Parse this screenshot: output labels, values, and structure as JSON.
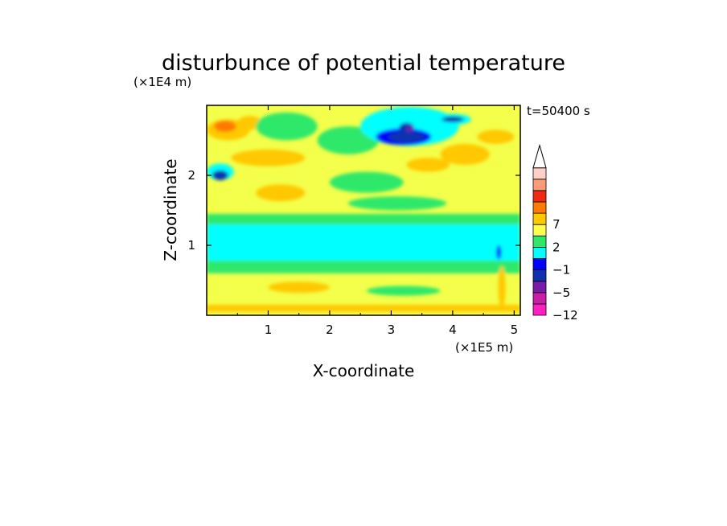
{
  "chart_data": {
    "type": "heatmap",
    "title": "disturbunce of potential temperature",
    "xlabel": "X-coordinate",
    "ylabel": "Z-coordinate",
    "x_unit_label": "(×1E5 m)",
    "y_unit_label": "(×1E4 m)",
    "time_label": "t=50400 s",
    "x_range": [
      0,
      5.1
    ],
    "y_range": [
      0,
      3.0
    ],
    "x_ticks": [
      1,
      2,
      3,
      4,
      5
    ],
    "x_tick_labels": [
      "1",
      "2",
      "3",
      "4",
      "5"
    ],
    "y_ticks": [
      1,
      2
    ],
    "y_tick_labels": [
      "1",
      "2"
    ],
    "colorbar_ticks": [
      {
        "level_index": 8,
        "label": "7"
      },
      {
        "level_index": 6,
        "label": "2"
      },
      {
        "level_index": 4,
        "label": "−1"
      },
      {
        "level_index": 2,
        "label": "−5"
      },
      {
        "level_index": 0,
        "label": "−12"
      }
    ],
    "colorbar_colors": [
      "#ff20c0",
      "#c81ea8",
      "#7a1aa8",
      "#1030b0",
      "#0000ff",
      "#00ffff",
      "#2ee86a",
      "#ffff50",
      "#ffc800",
      "#ff7a00",
      "#ee2a12",
      "#ff9a7a",
      "#ffd0c8"
    ],
    "background_color": "#f3ff4a",
    "features": [
      {
        "kind": "band",
        "x0": 0,
        "x1": 5.1,
        "z0": 0.75,
        "z1": 1.3,
        "color": "#00ffff"
      },
      {
        "kind": "band",
        "x0": 0,
        "x1": 5.1,
        "z0": 1.3,
        "z1": 1.45,
        "color": "#2ee86a"
      },
      {
        "kind": "band",
        "x0": 0,
        "x1": 5.1,
        "z0": 0.6,
        "z1": 0.78,
        "color": "#2ee86a"
      },
      {
        "kind": "band",
        "x0": 0,
        "x1": 5.1,
        "z0": 0.05,
        "z1": 0.15,
        "color": "#ffc800"
      },
      {
        "kind": "blob",
        "x": 0.35,
        "z": 2.65,
        "rx": 0.35,
        "rz": 0.15,
        "color": "#ffc800"
      },
      {
        "kind": "blob",
        "x": 0.3,
        "z": 2.7,
        "rx": 0.18,
        "rz": 0.08,
        "color": "#ff7a00"
      },
      {
        "kind": "blob",
        "x": 0.7,
        "z": 2.75,
        "rx": 0.2,
        "rz": 0.1,
        "color": "#ffc800"
      },
      {
        "kind": "blob",
        "x": 0.22,
        "z": 2.05,
        "rx": 0.22,
        "rz": 0.12,
        "color": "#00ffff"
      },
      {
        "kind": "blob",
        "x": 0.22,
        "z": 2.0,
        "rx": 0.13,
        "rz": 0.07,
        "color": "#1030b0"
      },
      {
        "kind": "blob",
        "x": 1.3,
        "z": 2.7,
        "rx": 0.5,
        "rz": 0.2,
        "color": "#2ee86a"
      },
      {
        "kind": "blob",
        "x": 2.3,
        "z": 2.5,
        "rx": 0.5,
        "rz": 0.2,
        "color": "#2ee86a"
      },
      {
        "kind": "blob",
        "x": 3.3,
        "z": 2.7,
        "rx": 0.8,
        "rz": 0.28,
        "color": "#00ffff"
      },
      {
        "kind": "blob",
        "x": 3.2,
        "z": 2.55,
        "rx": 0.45,
        "rz": 0.12,
        "color": "#0000ff"
      },
      {
        "kind": "blob",
        "x": 3.25,
        "z": 2.55,
        "rx": 0.3,
        "rz": 0.08,
        "color": "#1030b0"
      },
      {
        "kind": "blob",
        "x": 3.25,
        "z": 2.68,
        "rx": 0.12,
        "rz": 0.07,
        "color": "#1030b0"
      },
      {
        "kind": "blob",
        "x": 3.3,
        "z": 2.66,
        "rx": 0.05,
        "rz": 0.035,
        "color": "#7a1aa8"
      },
      {
        "kind": "blob",
        "x": 4.0,
        "z": 2.8,
        "rx": 0.3,
        "rz": 0.08,
        "color": "#00ffff"
      },
      {
        "kind": "blob",
        "x": 4.0,
        "z": 2.8,
        "rx": 0.18,
        "rz": 0.04,
        "color": "#1030b0"
      },
      {
        "kind": "blob",
        "x": 4.2,
        "z": 2.3,
        "rx": 0.4,
        "rz": 0.15,
        "color": "#ffc800"
      },
      {
        "kind": "blob",
        "x": 4.7,
        "z": 2.55,
        "rx": 0.3,
        "rz": 0.1,
        "color": "#ffc800"
      },
      {
        "kind": "blob",
        "x": 3.6,
        "z": 2.15,
        "rx": 0.35,
        "rz": 0.1,
        "color": "#ffc800"
      },
      {
        "kind": "blob",
        "x": 2.6,
        "z": 1.9,
        "rx": 0.6,
        "rz": 0.15,
        "color": "#2ee86a"
      },
      {
        "kind": "blob",
        "x": 1.2,
        "z": 1.75,
        "rx": 0.4,
        "rz": 0.12,
        "color": "#ffc800"
      },
      {
        "kind": "blob",
        "x": 3.1,
        "z": 1.6,
        "rx": 0.8,
        "rz": 0.1,
        "color": "#2ee86a"
      },
      {
        "kind": "blob",
        "x": 1.0,
        "z": 2.25,
        "rx": 0.6,
        "rz": 0.12,
        "color": "#ffc800"
      },
      {
        "kind": "blob",
        "x": 4.75,
        "z": 0.9,
        "rx": 0.04,
        "rz": 0.1,
        "color": "#0000ff"
      },
      {
        "kind": "blob",
        "x": 4.8,
        "z": 0.4,
        "rx": 0.06,
        "rz": 0.3,
        "color": "#ffc800"
      },
      {
        "kind": "blob",
        "x": 1.5,
        "z": 0.4,
        "rx": 0.5,
        "rz": 0.08,
        "color": "#ffc800"
      },
      {
        "kind": "blob",
        "x": 3.2,
        "z": 0.35,
        "rx": 0.6,
        "rz": 0.07,
        "color": "#2ee86a"
      }
    ]
  }
}
